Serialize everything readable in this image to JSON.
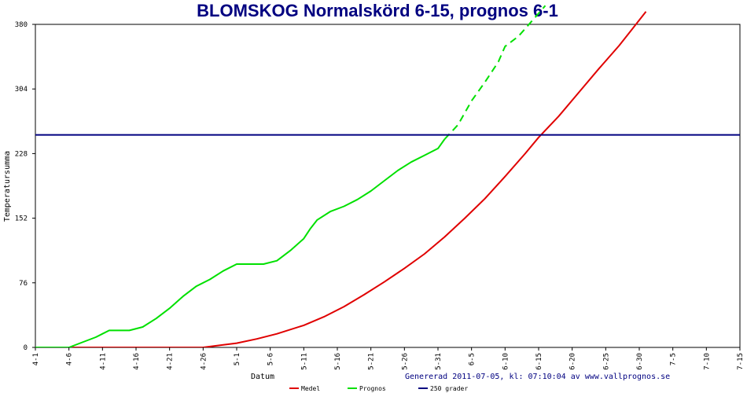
{
  "chart_data": {
    "type": "line",
    "title": "BLOMSKOG Normalskörd 6-15, prognos 6-1",
    "xlabel": "Datum",
    "ylabel": "Temperatursumma",
    "xlim": [
      0,
      105
    ],
    "ylim": [
      0,
      380
    ],
    "y_ticks": [
      0,
      76,
      152,
      228,
      304,
      380
    ],
    "x_ticks": [
      {
        "x": 0,
        "label": "4-1"
      },
      {
        "x": 5,
        "label": "4-6"
      },
      {
        "x": 10,
        "label": "4-11"
      },
      {
        "x": 15,
        "label": "4-16"
      },
      {
        "x": 20,
        "label": "4-21"
      },
      {
        "x": 25,
        "label": "4-26"
      },
      {
        "x": 30,
        "label": "5-1"
      },
      {
        "x": 35,
        "label": "5-6"
      },
      {
        "x": 40,
        "label": "5-11"
      },
      {
        "x": 45,
        "label": "5-16"
      },
      {
        "x": 50,
        "label": "5-21"
      },
      {
        "x": 55,
        "label": "5-26"
      },
      {
        "x": 60,
        "label": "5-31"
      },
      {
        "x": 65,
        "label": "6-5"
      },
      {
        "x": 70,
        "label": "6-10"
      },
      {
        "x": 75,
        "label": "6-15"
      },
      {
        "x": 80,
        "label": "6-20"
      },
      {
        "x": 85,
        "label": "6-25"
      },
      {
        "x": 90,
        "label": "6-30"
      },
      {
        "x": 95,
        "label": "7-5"
      },
      {
        "x": 100,
        "label": "7-10"
      },
      {
        "x": 105,
        "label": "7-15"
      }
    ],
    "grid": false,
    "legend_position": "bottom",
    "series": [
      {
        "name": "Medel",
        "color": "#e00000",
        "style": "solid",
        "points": [
          [
            0,
            0
          ],
          [
            25,
            0
          ],
          [
            28,
            3
          ],
          [
            30,
            5
          ],
          [
            33,
            10
          ],
          [
            36,
            16
          ],
          [
            40,
            26
          ],
          [
            43,
            36
          ],
          [
            46,
            48
          ],
          [
            49,
            62
          ],
          [
            52,
            77
          ],
          [
            55,
            93
          ],
          [
            58,
            110
          ],
          [
            61,
            130
          ],
          [
            64,
            152
          ],
          [
            67,
            175
          ],
          [
            70,
            201
          ],
          [
            73,
            228
          ],
          [
            75,
            247
          ],
          [
            78,
            272
          ],
          [
            81,
            300
          ],
          [
            84,
            328
          ],
          [
            87,
            355
          ],
          [
            89,
            375
          ],
          [
            91,
            395
          ]
        ]
      },
      {
        "name": "Prognos",
        "color": "#00e000",
        "style": "solid",
        "points": [
          [
            0,
            0
          ],
          [
            5,
            0
          ],
          [
            7,
            6
          ],
          [
            9,
            12
          ],
          [
            10,
            16
          ],
          [
            11,
            20
          ],
          [
            14,
            20
          ],
          [
            16,
            24
          ],
          [
            18,
            34
          ],
          [
            20,
            46
          ],
          [
            22,
            60
          ],
          [
            24,
            72
          ],
          [
            26,
            80
          ],
          [
            28,
            90
          ],
          [
            30,
            98
          ],
          [
            32,
            98
          ],
          [
            34,
            98
          ],
          [
            36,
            102
          ],
          [
            38,
            114
          ],
          [
            40,
            128
          ],
          [
            41,
            140
          ],
          [
            42,
            150
          ],
          [
            44,
            160
          ],
          [
            46,
            166
          ],
          [
            48,
            174
          ],
          [
            50,
            184
          ],
          [
            52,
            196
          ],
          [
            54,
            208
          ],
          [
            56,
            218
          ],
          [
            58,
            226
          ],
          [
            60,
            234
          ],
          [
            61,
            245
          ]
        ]
      },
      {
        "name": "Prognos (dashed)",
        "color": "#00e000",
        "style": "dashed",
        "points": [
          [
            61,
            245
          ],
          [
            63,
            262
          ],
          [
            65,
            290
          ],
          [
            67,
            312
          ],
          [
            69,
            336
          ],
          [
            70,
            354
          ],
          [
            72,
            366
          ],
          [
            74,
            384
          ],
          [
            76,
            402
          ]
        ]
      },
      {
        "name": "250 grader",
        "color": "#000080",
        "style": "solid",
        "points": [
          [
            0,
            250
          ],
          [
            105,
            250
          ]
        ]
      }
    ],
    "legend": [
      {
        "label": "Medel",
        "color": "#e00000"
      },
      {
        "label": "Prognos",
        "color": "#00e000"
      },
      {
        "label": "250 grader",
        "color": "#000080"
      }
    ]
  },
  "footer": {
    "generated": "Genererad 2011-07-05, kl: 07:10:04 av www.vallprognos.se"
  }
}
